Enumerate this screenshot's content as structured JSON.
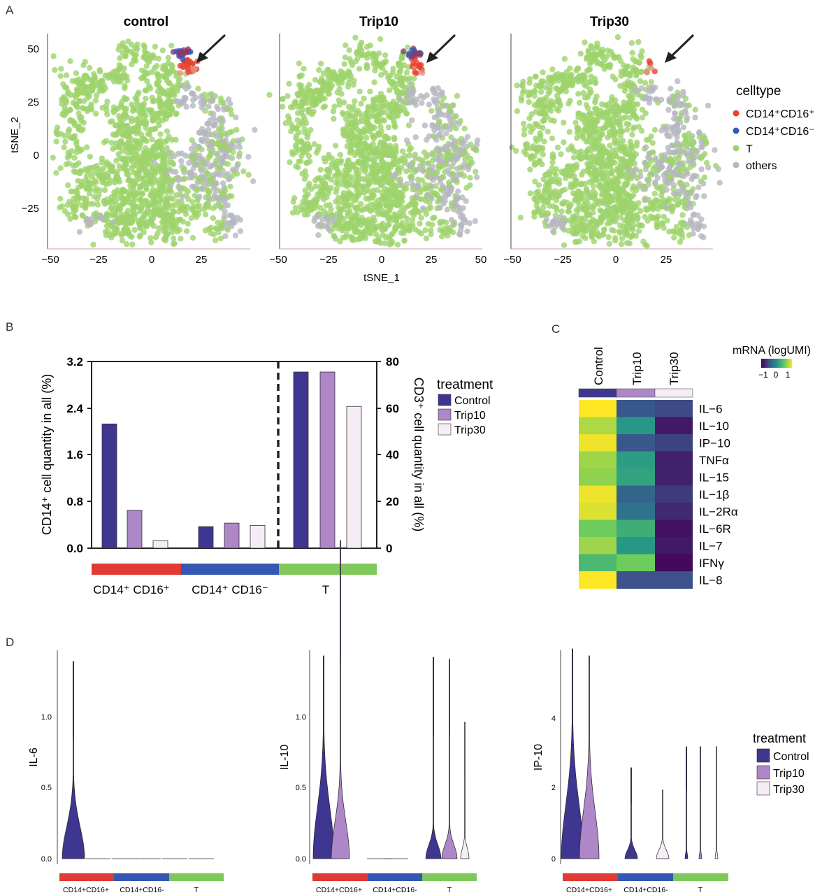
{
  "colors": {
    "cd14_cd16pos": "#e8412f",
    "cd14_cd16neg": "#3757b8",
    "t_cell": "#9ed36b",
    "others": "#b7b7c0",
    "control": "#3f3691",
    "trip10": "#ad87c8",
    "trip30": "#f6ecf6",
    "bar_red": "#e03a35",
    "bar_blue": "#3558b4",
    "bar_green": "#7fc85a"
  },
  "panelA": {
    "label": "A",
    "titles": [
      "control",
      "Trip10",
      "Trip30"
    ],
    "xlabel": "tSNE_1",
    "ylabel": "tSNE_2",
    "xticks": [
      "−50",
      "−25",
      "0",
      "25",
      "50"
    ],
    "yticks": [
      "50",
      "25",
      "0",
      "−25"
    ],
    "legend_title": "celltype",
    "legend_items": [
      {
        "label": "CD14⁺CD16⁺",
        "color": "#e8412f"
      },
      {
        "label": "CD14⁺CD16⁻",
        "color": "#3757b8"
      },
      {
        "label": "T",
        "color": "#9ed36b"
      },
      {
        "label": "others",
        "color": "#b7b7c0"
      }
    ]
  },
  "panelB": {
    "label": "B",
    "ylabel_left": "CD14⁺ cell quantity in all (%)",
    "ylabel_right": "CD3⁺ cell quantity in all (%)",
    "left_ticks": [
      "3.2",
      "2.4",
      "1.6",
      "0.8",
      "0.0"
    ],
    "right_ticks": [
      "80",
      "60",
      "40",
      "20",
      "0"
    ],
    "groups": [
      "CD14⁺ CD16⁺",
      "CD14⁺ CD16⁻",
      "T"
    ],
    "legend_title": "treatment",
    "legend_items": [
      "Control",
      "Trip10",
      "Trip30"
    ]
  },
  "panelC": {
    "label": "C",
    "columns": [
      "Control",
      "Trip10",
      "Trip30"
    ],
    "rows": [
      "IL−6",
      "IL−10",
      "IP−10",
      "TNFα",
      "IL−15",
      "IL−1β",
      "IL−2Rα",
      "IL−6R",
      "IL−7",
      "IFNγ",
      "IL−8"
    ],
    "legend_title": "mRNA (logUMI)",
    "legend_ticks": [
      "−1",
      "0",
      "1"
    ]
  },
  "panelD": {
    "label": "D",
    "ylabels": [
      "IL-6",
      "IL-10",
      "IP-10"
    ],
    "yticks_1": [
      "1.0",
      "0.5",
      "0.0"
    ],
    "yticks_2": [
      "1.0",
      "0.5",
      "0.0"
    ],
    "yticks_3": [
      "4",
      "2",
      "0"
    ],
    "groups": [
      "CD14+CD16+",
      "CD14+CD16-",
      "T"
    ],
    "legend_title": "treatment",
    "legend_items": [
      "Control",
      "Trip10",
      "Trip30"
    ]
  },
  "chart_data": [
    {
      "type": "bar",
      "panel": "B",
      "categories": [
        "CD14⁺ CD16⁺",
        "CD14⁺ CD16⁻",
        "T"
      ],
      "series": [
        {
          "name": "Control",
          "values": [
            2.13,
            0.37,
            3.02
          ]
        },
        {
          "name": "Trip10",
          "values": [
            0.65,
            0.43,
            3.02
          ]
        },
        {
          "name": "Trip30",
          "values": [
            0.13,
            0.39,
            2.43
          ]
        }
      ],
      "note_values": "T group plotted on right axis (CD3⁺ %): Control 75.5, Trip10 75.5, Trip30 60.8",
      "ylim_left": [
        0,
        3.2
      ],
      "ylim_right": [
        0,
        80
      ]
    },
    {
      "type": "heatmap",
      "panel": "C",
      "columns": [
        "Control",
        "Trip10",
        "Trip30"
      ],
      "rows": [
        "IL−6",
        "IL−10",
        "IP−10",
        "TNFα",
        "IL−15",
        "IL−1β",
        "IL−2Rα",
        "IL−6R",
        "IL−7",
        "IFNγ",
        "IL−8"
      ],
      "values": [
        [
          1.0,
          -0.45,
          -0.55
        ],
        [
          0.75,
          0.05,
          -0.85
        ],
        [
          0.95,
          -0.45,
          -0.6
        ],
        [
          0.7,
          0.1,
          -0.8
        ],
        [
          0.65,
          0.15,
          -0.8
        ],
        [
          0.95,
          -0.35,
          -0.65
        ],
        [
          0.9,
          -0.25,
          -0.75
        ],
        [
          0.55,
          0.25,
          -0.9
        ],
        [
          0.7,
          0.05,
          -0.85
        ],
        [
          0.35,
          0.55,
          -0.95
        ],
        [
          1.0,
          -0.5,
          -0.5
        ]
      ],
      "range": [
        -1,
        1
      ]
    }
  ]
}
